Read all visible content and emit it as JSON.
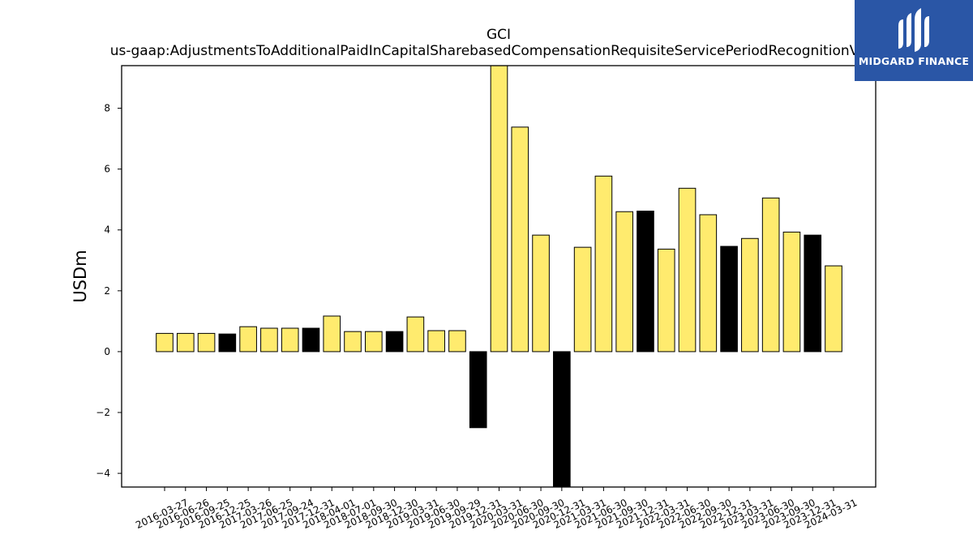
{
  "chart_data": {
    "type": "bar",
    "title": "GCI",
    "subtitle": "us-gaap:AdjustmentsToAdditionalPaidInCapitalSharebasedCompensationRequisiteServicePeriodRecognitionValue",
    "xlabel": "",
    "ylabel": "USDm",
    "ylim": [
      -4.45,
      9.4
    ],
    "yticks": [
      -4,
      -2,
      0,
      2,
      4,
      6,
      8
    ],
    "ytick_labels": [
      "−4",
      "−2",
      "0",
      "2",
      "4",
      "6",
      "8"
    ],
    "grid": false,
    "categories": [
      "2016-03-27",
      "2016-06-26",
      "2016-09-25",
      "2016-12-25",
      "2017-03-26",
      "2017-06-25",
      "2017-09-24",
      "2017-12-31",
      "2018-04-01",
      "2018-07-01",
      "2018-09-30",
      "2018-12-30",
      "2019-03-31",
      "2019-06-30",
      "2019-09-29",
      "2019-12-31",
      "2020-03-31",
      "2020-06-30",
      "2020-09-30",
      "2020-12-31",
      "2021-03-31",
      "2021-06-30",
      "2021-09-30",
      "2021-12-31",
      "2022-03-31",
      "2022-06-30",
      "2022-09-30",
      "2022-12-31",
      "2023-03-31",
      "2023-06-30",
      "2023-09-30",
      "2023-12-31",
      "2024-03-31"
    ],
    "values": [
      0.6,
      0.6,
      0.6,
      0.58,
      0.82,
      0.77,
      0.77,
      0.77,
      1.17,
      0.66,
      0.66,
      0.66,
      1.14,
      0.69,
      0.69,
      -2.5,
      9.4,
      7.38,
      3.83,
      -4.45,
      3.43,
      5.77,
      4.6,
      4.62,
      3.37,
      5.37,
      4.5,
      3.46,
      3.72,
      5.05,
      3.93,
      3.83,
      2.82
    ],
    "bar_colors": [
      "#ffeb6e",
      "#ffeb6e",
      "#ffeb6e",
      "#000000",
      "#ffeb6e",
      "#ffeb6e",
      "#ffeb6e",
      "#000000",
      "#ffeb6e",
      "#ffeb6e",
      "#ffeb6e",
      "#000000",
      "#ffeb6e",
      "#ffeb6e",
      "#ffeb6e",
      "#000000",
      "#ffeb6e",
      "#ffeb6e",
      "#ffeb6e",
      "#000000",
      "#ffeb6e",
      "#ffeb6e",
      "#ffeb6e",
      "#000000",
      "#ffeb6e",
      "#ffeb6e",
      "#ffeb6e",
      "#000000",
      "#ffeb6e",
      "#ffeb6e",
      "#ffeb6e",
      "#000000",
      "#ffeb6e"
    ],
    "colors": {
      "quarter": "#ffeb6e",
      "year_end": "#000000",
      "edge": "#000000"
    }
  },
  "logo": {
    "text": "MIDGARD FINANCE",
    "background": "#2a56a6"
  }
}
